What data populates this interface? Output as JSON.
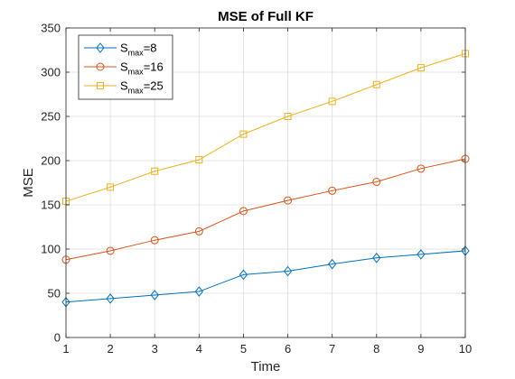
{
  "chart_data": {
    "type": "line",
    "title": "MSE of Full KF",
    "xlabel": "Time",
    "ylabel": "MSE",
    "xlim": [
      1,
      10
    ],
    "ylim": [
      0,
      350
    ],
    "xticks": [
      1,
      2,
      3,
      4,
      5,
      6,
      7,
      8,
      9,
      10
    ],
    "yticks": [
      0,
      50,
      100,
      150,
      200,
      250,
      300,
      350
    ],
    "grid": true,
    "legend_location": "top-left",
    "x": [
      1,
      2,
      3,
      4,
      5,
      6,
      7,
      8,
      9,
      10
    ],
    "series": [
      {
        "name_main": "S",
        "name_sub": "max",
        "name_suffix": "=8",
        "color": "#0072BD",
        "marker": "diamond",
        "values": [
          40,
          44,
          48,
          52,
          71,
          75,
          83,
          90,
          94,
          98
        ]
      },
      {
        "name_main": "S",
        "name_sub": "max",
        "name_suffix": "=16",
        "color": "#D95319",
        "marker": "circle",
        "values": [
          88,
          98,
          110,
          120,
          143,
          155,
          166,
          176,
          191,
          202
        ]
      },
      {
        "name_main": "S",
        "name_sub": "max",
        "name_suffix": "=25",
        "color": "#EDB120",
        "marker": "square",
        "values": [
          154,
          170,
          188,
          201,
          230,
          250,
          267,
          286,
          305,
          321
        ]
      }
    ]
  }
}
